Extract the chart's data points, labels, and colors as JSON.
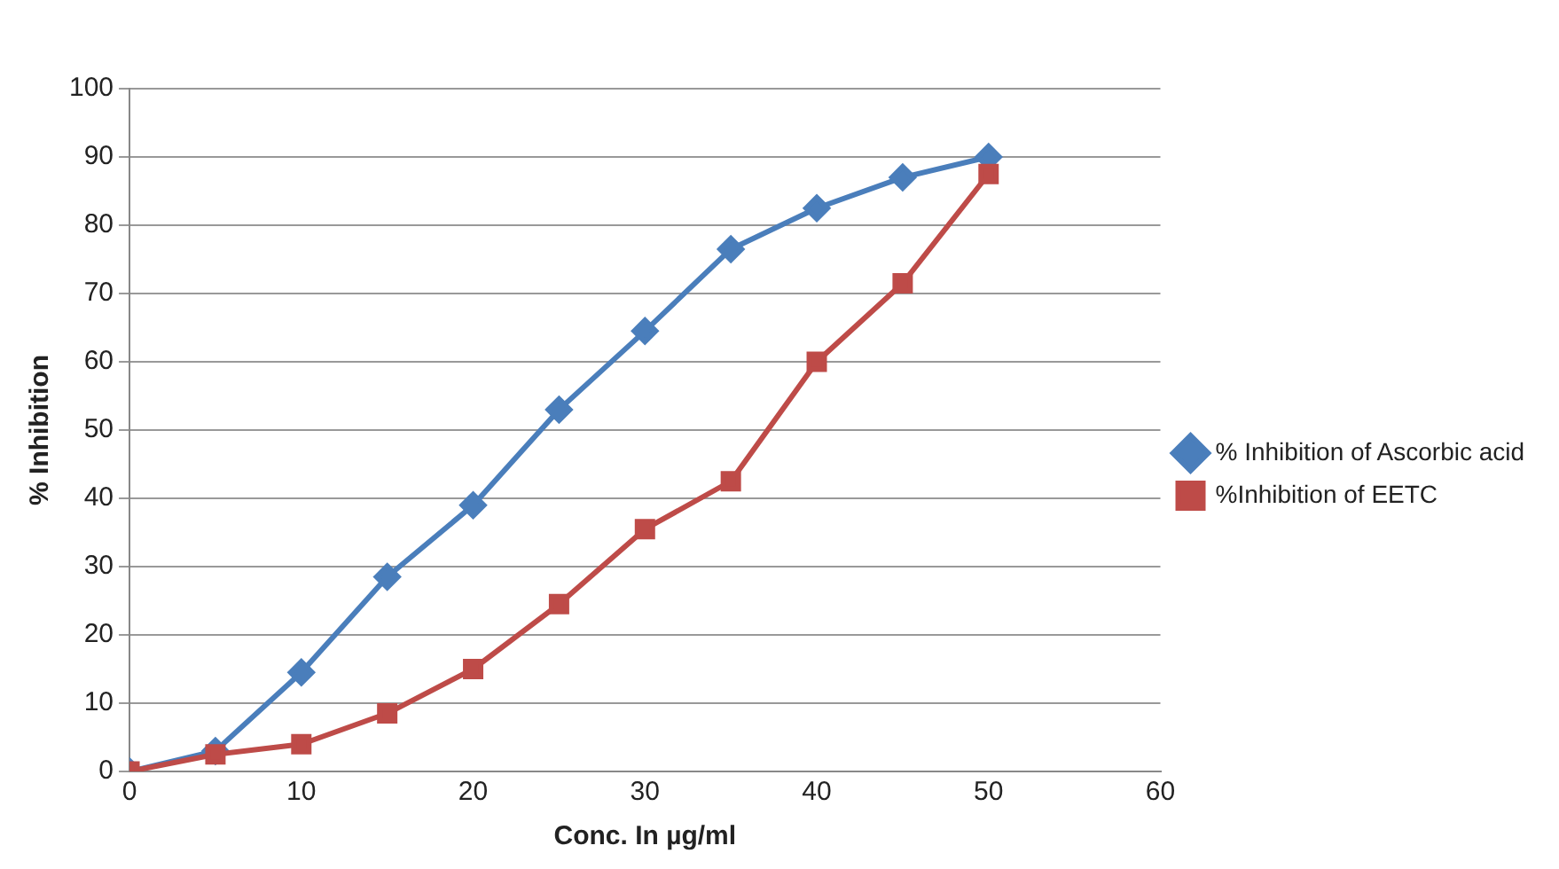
{
  "chart_data": {
    "type": "line",
    "xlabel": "Conc. In µg/ml",
    "ylabel": "% Inhibition",
    "x": [
      0,
      5,
      10,
      15,
      20,
      25,
      30,
      35,
      40,
      45,
      50
    ],
    "series": [
      {
        "name": "% Inhibition of Ascorbic acid",
        "color": "#4a7ebb",
        "marker": "diamond",
        "values": [
          0,
          3,
          14.5,
          28.5,
          39,
          53,
          64.5,
          76.5,
          82.5,
          87,
          90
        ]
      },
      {
        "name": "%Inhibition of EETC",
        "color": "#be4b48",
        "marker": "square",
        "values": [
          0,
          2.5,
          4,
          8.5,
          15,
          24.5,
          35.5,
          42.5,
          60,
          71.5,
          87.5
        ]
      }
    ],
    "xlim": [
      0,
      60
    ],
    "xticks": [
      0,
      10,
      20,
      30,
      40,
      50,
      60
    ],
    "ylim": [
      0,
      100
    ],
    "yticks": [
      0,
      10,
      20,
      30,
      40,
      50,
      60,
      70,
      80,
      90,
      100
    ],
    "grid": "y",
    "legend": "right",
    "line_style": "solid"
  }
}
